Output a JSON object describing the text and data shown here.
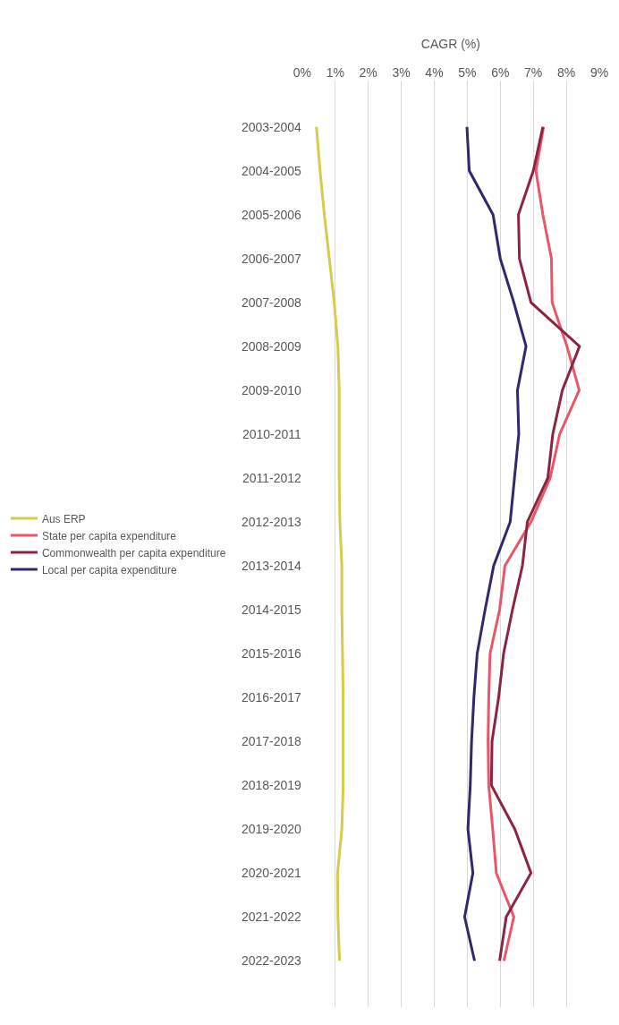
{
  "chart_data": {
    "type": "line",
    "xlabel": "CAGR (%)",
    "categories": [
      "2003-2004",
      "2004-2005",
      "2005-2006",
      "2006-2007",
      "2007-2008",
      "2008-2009",
      "2009-2010",
      "2010-2011",
      "2011-2012",
      "2012-2013",
      "2013-2014",
      "2014-2015",
      "2015-2016",
      "2016-2017",
      "2017-2018",
      "2018-2019",
      "2019-2020",
      "2020-2021",
      "2021-2022",
      "2022-2023"
    ],
    "orientation": "horizontal",
    "series": [
      {
        "name": "Aus ERP",
        "color": "#d4cc4a",
        "values": [
          0.43,
          0.54,
          0.67,
          0.82,
          0.97,
          1.08,
          1.12,
          1.12,
          1.12,
          1.14,
          1.2,
          1.2,
          1.22,
          1.24,
          1.24,
          1.24,
          1.2,
          1.07,
          1.08,
          1.13
        ]
      },
      {
        "name": "State per capita expenditure",
        "color": "#e8566a",
        "values": [
          7.31,
          7.08,
          7.29,
          7.55,
          7.57,
          8.02,
          8.39,
          7.8,
          7.51,
          6.93,
          6.14,
          5.98,
          5.69,
          5.65,
          5.63,
          5.65,
          5.77,
          5.88,
          6.41,
          6.11
        ]
      },
      {
        "name": "Commonwealth per capita expenditure",
        "color": "#8b2540",
        "values": [
          7.29,
          7.0,
          6.55,
          6.58,
          6.93,
          8.4,
          7.88,
          7.59,
          7.44,
          6.82,
          6.67,
          6.37,
          6.1,
          5.95,
          5.75,
          5.73,
          6.44,
          6.93,
          6.18,
          5.98
        ]
      },
      {
        "name": "Local per capita expenditure",
        "color": "#2e2a6b",
        "values": [
          4.99,
          5.06,
          5.78,
          6.0,
          6.41,
          6.78,
          6.52,
          6.56,
          6.43,
          6.3,
          5.8,
          5.54,
          5.3,
          5.2,
          5.13,
          5.09,
          5.02,
          5.17,
          4.92,
          5.22
        ]
      }
    ],
    "xlim": [
      0,
      9
    ],
    "xticks": [
      {
        "value": 0,
        "label": "0%"
      },
      {
        "value": 1,
        "label": "1%"
      },
      {
        "value": 2,
        "label": "2%"
      },
      {
        "value": 3,
        "label": "3%"
      },
      {
        "value": 4,
        "label": "4%"
      },
      {
        "value": 5,
        "label": "5%"
      },
      {
        "value": 6,
        "label": "6%"
      },
      {
        "value": 7,
        "label": "7%"
      },
      {
        "value": 8,
        "label": "8%"
      },
      {
        "value": 9,
        "label": "9%"
      }
    ],
    "grid": "x",
    "legend": "left",
    "marker": "none",
    "line_style": "solid"
  }
}
